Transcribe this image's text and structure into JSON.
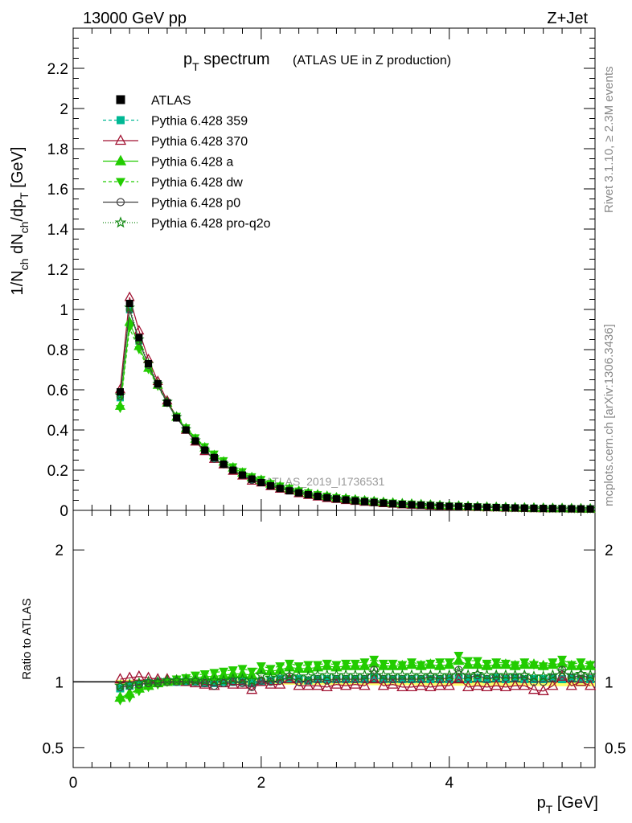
{
  "header": {
    "left": "13000 GeV pp",
    "right": "Z+Jet"
  },
  "title": {
    "main": "p",
    "main_sub": "T",
    "main_rest": " spectrum",
    "note": "(ATLAS UE in Z production)"
  },
  "side_labels": {
    "rivet": "Rivet 3.1.10, ≥ 2.3M events",
    "mcplots": "mcplots.cern.ch [arXiv:1306.3436]"
  },
  "watermark": "ATLAS_2019_I1736531",
  "axes": {
    "y_main_label": "1/N",
    "y_main_label_sub1": "ch",
    "y_main_label_mid": " dN",
    "y_main_label_sub2": "ch",
    "y_main_label_mid2": "/dp",
    "y_main_label_sub3": "T",
    "y_main_label_unit": " [GeV]",
    "y_ratio_label": "Ratio to ATLAS",
    "x_label": "p",
    "x_label_sub": "T",
    "x_label_unit": " [GeV]"
  },
  "chart_data": {
    "type": "line",
    "x": [
      0.5,
      0.6,
      0.7,
      0.8,
      0.9,
      1.0,
      1.1,
      1.2,
      1.3,
      1.4,
      1.5,
      1.6,
      1.7,
      1.8,
      1.9,
      2.0,
      2.1,
      2.2,
      2.3,
      2.4,
      2.5,
      2.6,
      2.7,
      2.8,
      2.9,
      3.0,
      3.1,
      3.2,
      3.3,
      3.4,
      3.5,
      3.6,
      3.7,
      3.8,
      3.9,
      4.0,
      4.1,
      4.2,
      4.3,
      4.4,
      4.5,
      4.6,
      4.7,
      4.8,
      4.9,
      5.0,
      5.1,
      5.2,
      5.3,
      5.4,
      5.5
    ],
    "xlim": [
      0,
      5.55
    ],
    "ylim_main": [
      0,
      2.4
    ],
    "y_ticks_main": [
      0,
      0.2,
      0.4,
      0.6,
      0.8,
      1,
      1.2,
      1.4,
      1.6,
      1.8,
      2,
      2.2
    ],
    "y_tick_labels_main": [
      "0",
      "0.2",
      "0.4",
      "0.6",
      "0.8",
      "1",
      "1.2",
      "1.4",
      "1.6",
      "1.8",
      "2",
      "2.2"
    ],
    "ylim_ratio": [
      0.35,
      2.3
    ],
    "y_ticks_ratio": [
      0.5,
      1,
      2
    ],
    "y_tick_labels_ratio": [
      "0.5",
      "1",
      "2"
    ],
    "x_ticks": [
      0,
      2,
      4
    ],
    "x_tick_labels": [
      "0",
      "2",
      "4"
    ],
    "data": {
      "name": "ATLAS",
      "values": [
        0.59,
        1.03,
        0.86,
        0.73,
        0.63,
        0.535,
        0.46,
        0.4,
        0.345,
        0.3,
        0.263,
        0.23,
        0.2,
        0.176,
        0.156,
        0.138,
        0.122,
        0.109,
        0.097,
        0.087,
        0.078,
        0.07,
        0.063,
        0.057,
        0.052,
        0.047,
        0.043,
        0.039,
        0.036,
        0.033,
        0.03,
        0.028,
        0.026,
        0.024,
        0.022,
        0.02,
        0.019,
        0.0175,
        0.0162,
        0.015,
        0.014,
        0.013,
        0.012,
        0.0112,
        0.0105,
        0.0098,
        0.0092,
        0.0086,
        0.008,
        0.0075,
        0.007
      ],
      "color": "#000000"
    },
    "series": [
      {
        "name": "Pythia 6.428 359",
        "color": "#00b894",
        "dash": "4,3",
        "marker": "square",
        "ratio": [
          0.95,
          0.97,
          0.98,
          0.99,
          1.0,
          1.0,
          1.0,
          1.0,
          1.0,
          0.99,
          0.99,
          1.0,
          1.0,
          1.0,
          0.99,
          1.0,
          1.01,
          1.02,
          1.02,
          1.02,
          1.01,
          1.02,
          1.02,
          1.02,
          1.02,
          1.02,
          1.02,
          1.03,
          1.02,
          1.02,
          1.02,
          1.02,
          1.02,
          1.02,
          1.02,
          1.02,
          1.03,
          1.02,
          1.03,
          1.02,
          1.03,
          1.02,
          1.03,
          1.02,
          1.02,
          1.02,
          1.03,
          1.02,
          1.03,
          1.02,
          1.02
        ]
      },
      {
        "name": "Pythia 6.428 370",
        "color": "#a01030",
        "dash": "",
        "marker": "triangle-open",
        "ratio": [
          1.02,
          1.03,
          1.04,
          1.03,
          1.02,
          1.02,
          1.01,
          1.0,
          0.99,
          0.98,
          0.97,
          0.99,
          0.98,
          0.98,
          0.94,
          1.0,
          0.98,
          0.98,
          1.02,
          0.97,
          0.97,
          0.97,
          0.96,
          0.98,
          0.97,
          0.98,
          0.97,
          1.02,
          0.97,
          0.98,
          0.96,
          0.96,
          0.97,
          0.96,
          0.97,
          0.97,
          1.02,
          0.96,
          0.97,
          0.96,
          0.97,
          0.96,
          0.97,
          0.97,
          0.94,
          0.93,
          0.97,
          1.04,
          0.97,
          1.0,
          0.97
        ]
      },
      {
        "name": "Pythia 6.428 a",
        "color": "#22cc00",
        "dash": "",
        "marker": "triangle",
        "ratio": [
          0.88,
          0.91,
          0.95,
          0.97,
          0.99,
          1.0,
          1.01,
          1.02,
          1.03,
          1.04,
          1.04,
          1.05,
          1.06,
          1.06,
          1.05,
          1.09,
          1.08,
          1.09,
          1.11,
          1.1,
          1.1,
          1.11,
          1.12,
          1.11,
          1.12,
          1.12,
          1.12,
          1.14,
          1.12,
          1.12,
          1.12,
          1.13,
          1.12,
          1.13,
          1.12,
          1.13,
          1.16,
          1.13,
          1.13,
          1.12,
          1.13,
          1.13,
          1.12,
          1.13,
          1.13,
          1.12,
          1.13,
          1.14,
          1.12,
          1.12,
          1.12
        ]
      },
      {
        "name": "Pythia 6.428 dw",
        "color": "#22cc00",
        "dash": "4,3",
        "marker": "triangle-down",
        "ratio": [
          0.86,
          0.88,
          0.93,
          0.96,
          0.98,
          1.0,
          1.02,
          1.03,
          1.05,
          1.06,
          1.07,
          1.08,
          1.09,
          1.1,
          1.08,
          1.12,
          1.1,
          1.12,
          1.14,
          1.12,
          1.13,
          1.13,
          1.14,
          1.13,
          1.14,
          1.14,
          1.15,
          1.17,
          1.14,
          1.14,
          1.13,
          1.15,
          1.13,
          1.14,
          1.15,
          1.15,
          1.2,
          1.16,
          1.16,
          1.14,
          1.15,
          1.14,
          1.13,
          1.15,
          1.13,
          1.12,
          1.15,
          1.17,
          1.13,
          1.15,
          1.13
        ]
      },
      {
        "name": "Pythia 6.428 p0",
        "color": "#404040",
        "dash": "",
        "marker": "circle-open",
        "ratio": [
          0.96,
          0.97,
          0.98,
          0.99,
          0.99,
          1.0,
          1.0,
          1.0,
          1.0,
          0.99,
          0.97,
          0.99,
          1.0,
          0.99,
          0.96,
          1.01,
          1.0,
          1.01,
          1.04,
          1.0,
          1.01,
          1.02,
          1.01,
          1.02,
          1.02,
          1.02,
          1.02,
          1.09,
          1.02,
          1.02,
          1.02,
          1.02,
          1.02,
          1.04,
          1.02,
          1.03,
          1.09,
          1.03,
          1.05,
          1.02,
          1.04,
          1.03,
          1.03,
          1.04,
          1.0,
          1.0,
          1.03,
          1.09,
          1.03,
          1.05,
          1.03
        ]
      },
      {
        "name": "Pythia 6.428 pro-q2o",
        "color": "#118811",
        "dash": "1,2",
        "marker": "star",
        "ratio": [
          0.97,
          0.98,
          0.99,
          1.0,
          1.0,
          1.01,
          1.01,
          1.01,
          1.01,
          1.01,
          1.01,
          1.01,
          1.02,
          1.02,
          1.01,
          1.05,
          1.03,
          1.04,
          1.05,
          1.04,
          1.04,
          1.05,
          1.05,
          1.05,
          1.05,
          1.05,
          1.05,
          1.07,
          1.05,
          1.05,
          1.05,
          1.05,
          1.05,
          1.05,
          1.05,
          1.05,
          1.08,
          1.05,
          1.06,
          1.05,
          1.05,
          1.05,
          1.05,
          1.05,
          1.04,
          1.04,
          1.05,
          1.08,
          1.05,
          1.06,
          1.05
        ]
      }
    ],
    "band_color": "#ffff66"
  }
}
